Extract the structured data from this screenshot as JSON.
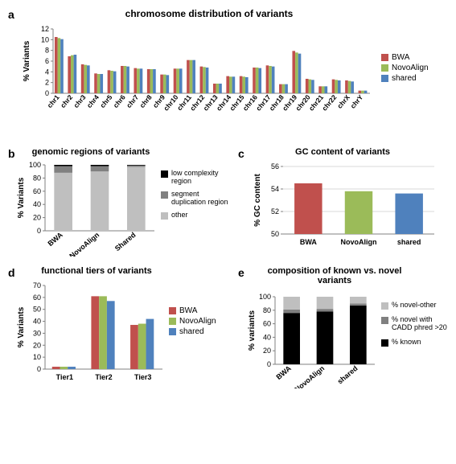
{
  "colors": {
    "bwa": "#c0504d",
    "novo": "#9bbb59",
    "shared": "#4f81bd",
    "black": "#000000",
    "dark_gray": "#595959",
    "light_gray": "#bfbfbf",
    "mid_gray": "#a6a6a6",
    "grid": "#d9d9d9",
    "axis": "#808080"
  },
  "panelA": {
    "label": "a",
    "title": "chromosome distribution of variants",
    "ylabel": "% Variants",
    "ylim": [
      0,
      12
    ],
    "ytick": 2,
    "categories": [
      "chr1",
      "chr2",
      "chr3",
      "chr4",
      "chr5",
      "chr6",
      "chr7",
      "chr8",
      "chr9",
      "chr10",
      "chr11",
      "chr12",
      "chr13",
      "chr14",
      "chr15",
      "chr16",
      "chr17",
      "chr18",
      "chr19",
      "chr20",
      "chr21",
      "chr22",
      "chrX",
      "chrY"
    ],
    "series": [
      {
        "name": "BWA",
        "color": "#c0504d",
        "values": [
          10.5,
          6.9,
          5.4,
          3.7,
          4.3,
          5.1,
          4.7,
          4.5,
          3.5,
          4.6,
          6.2,
          5.0,
          1.8,
          3.2,
          3.2,
          4.8,
          5.2,
          1.7,
          7.9,
          2.7,
          1.3,
          2.6,
          2.4,
          0.5
        ]
      },
      {
        "name": "NovoAlign",
        "color": "#9bbb59",
        "values": [
          10.3,
          7.1,
          5.3,
          3.6,
          4.2,
          5.1,
          4.6,
          4.5,
          3.5,
          4.6,
          6.2,
          4.9,
          1.8,
          3.1,
          3.1,
          4.8,
          5.1,
          1.7,
          7.6,
          2.6,
          1.3,
          2.5,
          2.3,
          0.5
        ]
      },
      {
        "name": "shared",
        "color": "#4f81bd",
        "values": [
          10.1,
          7.2,
          5.2,
          3.6,
          4.1,
          5.0,
          4.6,
          4.5,
          3.4,
          4.6,
          6.2,
          4.8,
          1.8,
          3.1,
          3.0,
          4.7,
          5.0,
          1.7,
          7.4,
          2.5,
          1.3,
          2.4,
          2.2,
          0.5
        ]
      }
    ]
  },
  "panelB": {
    "label": "b",
    "title": "genomic regions of variants",
    "ylabel": "% Variants",
    "ylim": [
      0,
      100
    ],
    "ytick": 20,
    "categories": [
      "BWA",
      "NovoAlign",
      "Shared"
    ],
    "stacks": [
      {
        "name": "low complexity region",
        "color": "#000000"
      },
      {
        "name": "segment duplication region",
        "color": "#808080"
      },
      {
        "name": "other",
        "color": "#bfbfbf"
      }
    ],
    "data": [
      {
        "low": 2,
        "seg": 10,
        "other": 88
      },
      {
        "low": 2,
        "seg": 8,
        "other": 90
      },
      {
        "low": 1,
        "seg": 2,
        "other": 97
      }
    ]
  },
  "panelC": {
    "label": "c",
    "title": "GC content of variants",
    "ylabel": "% GC content",
    "ylim": [
      50,
      56
    ],
    "ytick": 2,
    "categories": [
      "BWA",
      "NovoAlign",
      "shared"
    ],
    "values": [
      54.5,
      53.8,
      53.6
    ],
    "colors": [
      "#c0504d",
      "#9bbb59",
      "#4f81bd"
    ]
  },
  "panelD": {
    "label": "d",
    "title": "functional tiers of variants",
    "ylabel": "% Variants",
    "ylim": [
      0,
      70
    ],
    "ytick": 10,
    "categories": [
      "Tier1",
      "Tier2",
      "Tier3"
    ],
    "series": [
      {
        "name": "BWA",
        "color": "#c0504d",
        "values": [
          2,
          61,
          37
        ]
      },
      {
        "name": "NovoAlign",
        "color": "#9bbb59",
        "values": [
          2,
          61,
          38
        ]
      },
      {
        "name": "shared",
        "color": "#4f81bd",
        "values": [
          2,
          57,
          42
        ]
      }
    ]
  },
  "panelE": {
    "label": "e",
    "title": "composition of known vs. novel variants",
    "ylabel": "% variants",
    "ylim": [
      0,
      100
    ],
    "ytick": 20,
    "categories": [
      "BWA",
      "NovoAlign",
      "shared"
    ],
    "stacks": [
      {
        "name": "% novel-other",
        "color": "#bfbfbf"
      },
      {
        "name": "% novel with CADD phred >20",
        "color": "#808080"
      },
      {
        "name": "% known",
        "color": "#000000"
      }
    ],
    "data": [
      {
        "known": 76,
        "cadd": 5,
        "other": 19
      },
      {
        "known": 78,
        "cadd": 4,
        "other": 18
      },
      {
        "known": 87,
        "cadd": 3,
        "other": 10
      }
    ]
  }
}
